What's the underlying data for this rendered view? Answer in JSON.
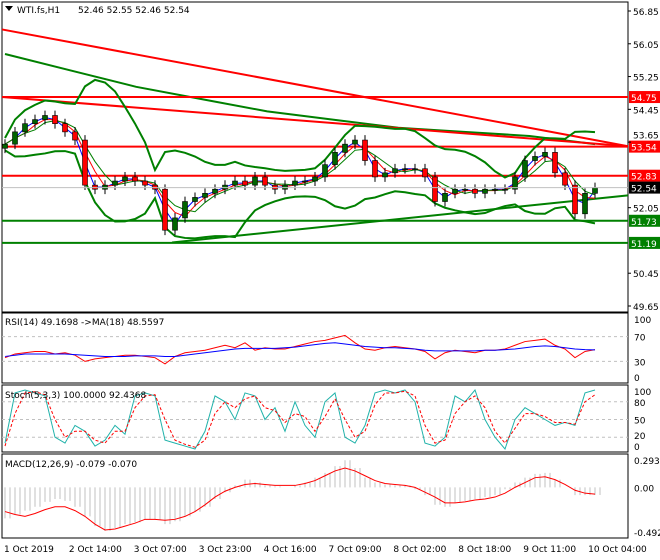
{
  "header": {
    "symbol": "WTI.fs,H1",
    "ohlc": "52.46 52.55 52.46 52.54",
    "menu_icon": "triangle-down-icon"
  },
  "price_axis": {
    "ticks": [
      "56.85",
      "56.05",
      "55.25",
      "54.45",
      "53.65",
      "52.05",
      "50.45",
      "49.65"
    ],
    "tick_values": [
      56.85,
      56.05,
      55.25,
      54.45,
      53.65,
      52.05,
      50.45,
      49.65
    ],
    "min": 49.65,
    "max": 56.85,
    "current": "52.54",
    "current_value": 52.54
  },
  "levels": [
    {
      "label": "54.75",
      "value": 54.75,
      "color": "#ff0000"
    },
    {
      "label": "53.54",
      "value": 53.54,
      "color": "#ff0000"
    },
    {
      "label": "52.83",
      "value": 52.83,
      "color": "#ff0000"
    },
    {
      "label": "51.73",
      "value": 51.73,
      "color": "#008000"
    },
    {
      "label": "51.19",
      "value": 51.19,
      "color": "#008000"
    }
  ],
  "chart_data": [
    {
      "type": "candlestick",
      "title": "WTI.fs,H1",
      "ylim": [
        49.65,
        56.85
      ],
      "closes": [
        53.6,
        53.9,
        54.1,
        54.2,
        54.3,
        54.1,
        53.9,
        53.7,
        52.6,
        52.5,
        52.6,
        52.7,
        52.8,
        52.7,
        52.6,
        52.5,
        51.5,
        51.8,
        52.2,
        52.3,
        52.4,
        52.5,
        52.6,
        52.7,
        52.6,
        52.8,
        52.6,
        52.5,
        52.6,
        52.7,
        52.7,
        52.8,
        53.1,
        53.4,
        53.6,
        53.7,
        53.2,
        52.8,
        52.9,
        53.0,
        53.0,
        53.0,
        52.8,
        52.2,
        52.4,
        52.5,
        52.5,
        52.4,
        52.5,
        52.5,
        52.5,
        52.8,
        53.2,
        53.3,
        53.4,
        52.9,
        52.6,
        51.9,
        52.4,
        52.54
      ],
      "long_ma": [
        55.8,
        55.4,
        55.0,
        54.7,
        54.4,
        54.2,
        54.0,
        53.9,
        53.8,
        53.6
      ],
      "trendlines": [
        {
          "color": "#ff0000",
          "from": 56.4,
          "to": 53.55
        },
        {
          "color": "#ff0000",
          "from": 54.75,
          "to": 53.55
        },
        {
          "color": "#008000",
          "from": 51.2,
          "to": 52.35,
          "start_fraction": 0.28
        }
      ],
      "colors": {
        "bull": "#006400",
        "bear": "#ff0000",
        "bands": "#008000",
        "ma_fast": "#0000ff",
        "ma_mid": "#ff0000",
        "ma_slow": "#008000"
      }
    },
    {
      "type": "line",
      "title": "RSI(14) 49.1698  ->MA(18) 48.5597",
      "ylim": [
        0,
        100
      ],
      "ticks": [
        "100",
        "70",
        "30",
        "0"
      ],
      "series": [
        {
          "name": "RSI(14)",
          "color": "#ff0000",
          "values": [
            36,
            42,
            44,
            46,
            46,
            42,
            44,
            40,
            30,
            34,
            36,
            38,
            40,
            40,
            38,
            36,
            26,
            38,
            44,
            46,
            48,
            52,
            56,
            52,
            60,
            48,
            52,
            50,
            50,
            54,
            58,
            62,
            64,
            68,
            72,
            60,
            50,
            48,
            52,
            54,
            52,
            50,
            46,
            34,
            44,
            48,
            46,
            44,
            48,
            48,
            50,
            56,
            62,
            64,
            66,
            56,
            50,
            36,
            46,
            49
          ]
        },
        {
          "name": "MA(18)",
          "color": "#0000ff",
          "values": [
            38,
            40,
            42,
            42,
            42,
            42,
            42,
            41,
            40,
            39,
            38,
            38,
            38,
            39,
            39,
            39,
            38,
            38,
            40,
            42,
            44,
            46,
            48,
            50,
            51,
            51,
            51,
            51,
            52,
            53,
            55,
            57,
            59,
            60,
            58,
            56,
            54,
            53,
            52,
            52,
            51,
            50,
            48,
            47,
            47,
            47,
            47,
            47,
            48,
            48,
            49,
            50,
            52,
            54,
            55,
            54,
            52,
            50,
            49,
            48.6
          ]
        }
      ]
    },
    {
      "type": "line",
      "title": "Stoch(5,3,3) 100.0000 92.4368",
      "ylim": [
        0,
        100
      ],
      "ticks": [
        "100",
        "80",
        "50",
        "20",
        "0"
      ],
      "series": [
        {
          "name": "%K",
          "color": "#20b2aa",
          "values": [
            10,
            95,
            100,
            95,
            90,
            20,
            10,
            40,
            30,
            5,
            15,
            40,
            25,
            90,
            95,
            90,
            15,
            10,
            5,
            0,
            30,
            90,
            80,
            50,
            95,
            90,
            50,
            70,
            30,
            80,
            40,
            20,
            80,
            95,
            20,
            10,
            40,
            95,
            100,
            95,
            100,
            80,
            10,
            5,
            20,
            90,
            80,
            100,
            50,
            20,
            0,
            50,
            70,
            60,
            50,
            40,
            45,
            40,
            95,
            100
          ],
          "values_note_free": true
        },
        {
          "name": "%D",
          "color": "#ff0000",
          "values": [
            5,
            60,
            95,
            97,
            92,
            50,
            20,
            30,
            30,
            15,
            10,
            30,
            30,
            70,
            90,
            92,
            50,
            15,
            8,
            3,
            15,
            60,
            80,
            70,
            85,
            90,
            70,
            65,
            45,
            60,
            55,
            30,
            55,
            85,
            50,
            20,
            30,
            75,
            95,
            95,
            98,
            90,
            40,
            10,
            15,
            60,
            80,
            90,
            70,
            30,
            10,
            35,
            60,
            60,
            55,
            45,
            45,
            42,
            80,
            92
          ]
        }
      ]
    },
    {
      "type": "bar+line",
      "title": "MACD(12,26,9) -0.079 -0.070",
      "ylim": [
        -0.492,
        0.293
      ],
      "ticks": [
        "0.293",
        "0.00",
        "-0.492"
      ],
      "series": [
        {
          "name": "MACD",
          "color": "#c0c0c0",
          "values": [
            -0.32,
            -0.28,
            -0.24,
            -0.2,
            -0.15,
            -0.12,
            -0.14,
            -0.2,
            -0.3,
            -0.4,
            -0.45,
            -0.42,
            -0.38,
            -0.36,
            -0.33,
            -0.33,
            -0.38,
            -0.35,
            -0.3,
            -0.25,
            -0.2,
            -0.12,
            -0.05,
            0.02,
            0.08,
            0.05,
            0.02,
            0.01,
            0.0,
            0.02,
            0.05,
            0.1,
            0.15,
            0.22,
            0.28,
            0.2,
            0.1,
            0.05,
            0.03,
            0.02,
            0.02,
            -0.02,
            -0.08,
            -0.18,
            -0.2,
            -0.16,
            -0.14,
            -0.12,
            -0.1,
            -0.08,
            -0.02,
            0.05,
            0.1,
            0.14,
            0.15,
            0.08,
            0.0,
            -0.08,
            -0.08,
            -0.079
          ]
        },
        {
          "name": "Signal",
          "color": "#ff0000",
          "values": [
            -0.25,
            -0.28,
            -0.3,
            -0.27,
            -0.23,
            -0.2,
            -0.2,
            -0.24,
            -0.3,
            -0.38,
            -0.44,
            -0.43,
            -0.4,
            -0.37,
            -0.33,
            -0.33,
            -0.34,
            -0.33,
            -0.3,
            -0.25,
            -0.18,
            -0.1,
            -0.04,
            0.0,
            0.03,
            0.04,
            0.03,
            0.02,
            0.02,
            0.02,
            0.04,
            0.07,
            0.12,
            0.17,
            0.2,
            0.17,
            0.12,
            0.07,
            0.04,
            0.03,
            0.02,
            0.0,
            -0.05,
            -0.1,
            -0.16,
            -0.16,
            -0.15,
            -0.13,
            -0.12,
            -0.1,
            -0.06,
            0.0,
            0.05,
            0.1,
            0.11,
            0.08,
            0.03,
            -0.03,
            -0.06,
            -0.07
          ]
        }
      ]
    }
  ],
  "time_axis": [
    "1 Oct 2019",
    "2 Oct 14:00",
    "3 Oct 07:00",
    "3 Oct 23:00",
    "4 Oct 16:00",
    "7 Oct 09:00",
    "8 Oct 02:00",
    "8 Oct 18:00",
    "9 Oct 11:00",
    "10 Oct 04:00"
  ]
}
